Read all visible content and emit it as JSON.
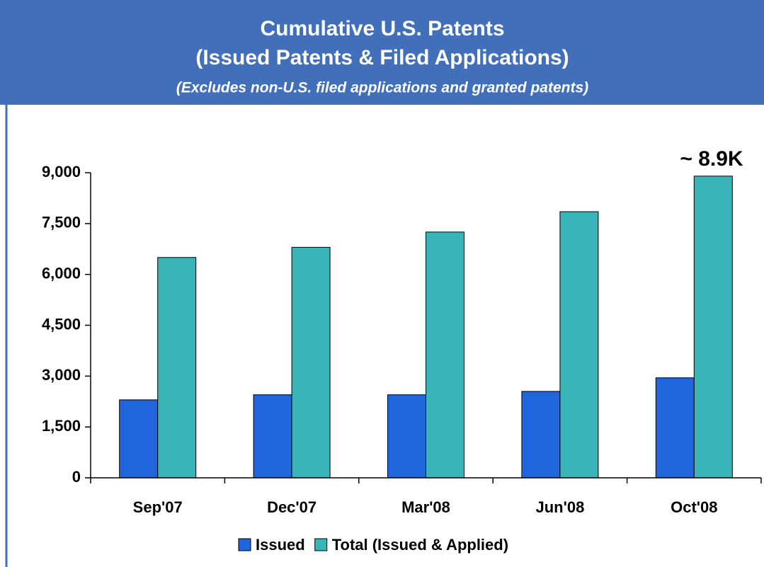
{
  "chart_data": {
    "type": "bar",
    "title": "Cumulative U.S. Patents",
    "subtitle": "(Issued Patents & Filed Applications)",
    "note": "(Excludes non-U.S. filed applications and granted patents)",
    "annotation": "~ 8.9K",
    "categories": [
      "Sep'07",
      "Dec'07",
      "Mar'08",
      "Jun'08",
      "Oct'08"
    ],
    "series": [
      {
        "name": "Issued",
        "color": "#1f66dd",
        "values": [
          2300,
          2450,
          2450,
          2550,
          2950
        ]
      },
      {
        "name": "Total (Issued & Applied)",
        "color": "#3ab5b7",
        "values": [
          6500,
          6800,
          7250,
          7850,
          8900
        ]
      }
    ],
    "ylim": [
      0,
      9000
    ],
    "yticks": [
      0,
      {
        "value": 1500,
        "label": "1,500"
      },
      {
        "value": 3000,
        "label": "3,000"
      },
      {
        "value": 4500,
        "label": "4,500"
      },
      {
        "value": 6000,
        "label": "6,000"
      },
      {
        "value": 7500,
        "label": "7,500"
      },
      {
        "value": 9000,
        "label": "9,000"
      }
    ],
    "grid": false,
    "legend": "bottom"
  }
}
